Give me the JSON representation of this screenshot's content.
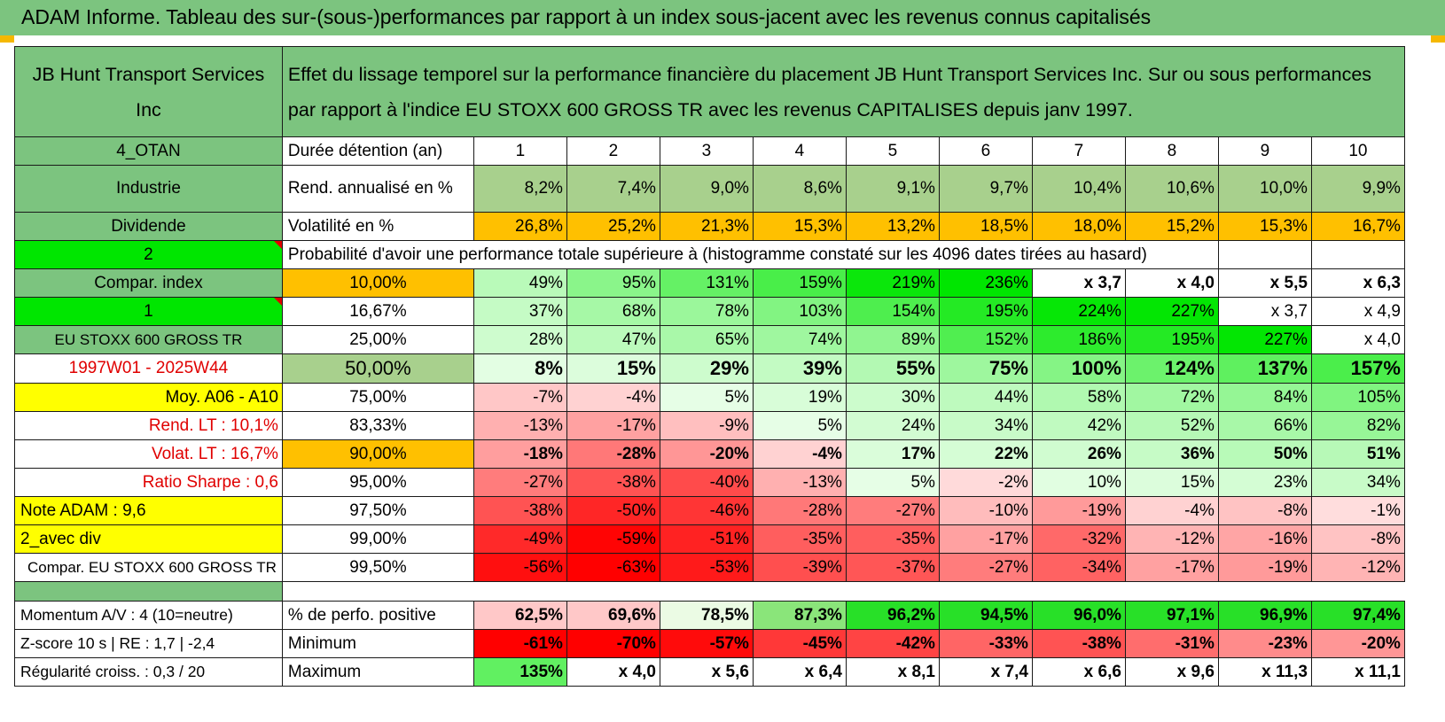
{
  "title": "ADAM Informe. Tableau des sur-(sous-)performances par rapport à un index sous-jacent avec les revenus connus capitalisés",
  "header": {
    "company": "JB Hunt Transport Services Inc",
    "description": "Effet du lissage temporel sur la performance financière du placement JB Hunt Transport Services Inc. Sur ou sous performances par rapport à l'indice EU STOXX 600 GROSS TR avec les revenus CAPITALISES depuis janv 1997."
  },
  "side": {
    "otan": "4_OTAN",
    "secteur": "Industrie",
    "dividende": "Dividende",
    "two": "2",
    "compar_index": "Compar. index",
    "one": "1",
    "index_name": "EU STOXX 600 GROSS TR",
    "period": "1997W01 - 2025W44",
    "moy": "Moy. A06 - A10",
    "rend_lt": "Rend. LT :    10,1%",
    "volat_lt": "Volat. LT :    16,7%",
    "sharpe": "Ratio Sharpe :    0,6",
    "note": "Note ADAM : 9,6",
    "avec_div": "2_avec div",
    "compar_full": "Compar. EU STOXX 600 GROSS TR"
  },
  "labels": {
    "duree": "Durée détention (an)",
    "rend": "Rend. annualisé en %",
    "vol": "Volatilité en %",
    "prob": "Probabilité d'avoir une performance totale supérieure à (histogramme constaté sur les 4096 dates tirées au hasard)"
  },
  "years": [
    "1",
    "2",
    "3",
    "4",
    "5",
    "6",
    "7",
    "8",
    "9",
    "10"
  ],
  "rend": [
    "8,2%",
    "7,4%",
    "9,0%",
    "8,6%",
    "9,1%",
    "9,7%",
    "10,4%",
    "10,6%",
    "10,0%",
    "9,9%"
  ],
  "vol": [
    "26,8%",
    "25,2%",
    "21,3%",
    "15,3%",
    "13,2%",
    "18,5%",
    "18,0%",
    "15,2%",
    "15,3%",
    "16,7%"
  ],
  "prob_rows": [
    {
      "pct": "10,00%",
      "values": [
        "49%",
        "95%",
        "131%",
        "159%",
        "219%",
        "236%",
        "x 3,7",
        "x 4,0",
        "x 5,5",
        "x 6,3"
      ]
    },
    {
      "pct": "16,67%",
      "values": [
        "37%",
        "68%",
        "78%",
        "103%",
        "154%",
        "195%",
        "224%",
        "227%",
        "x 3,7",
        "x 4,9"
      ]
    },
    {
      "pct": "25,00%",
      "values": [
        "28%",
        "47%",
        "65%",
        "74%",
        "89%",
        "152%",
        "186%",
        "195%",
        "227%",
        "x 4,0"
      ]
    },
    {
      "pct": "50,00%",
      "values": [
        "8%",
        "15%",
        "29%",
        "39%",
        "55%",
        "75%",
        "100%",
        "124%",
        "137%",
        "157%"
      ]
    },
    {
      "pct": "75,00%",
      "values": [
        "-7%",
        "-4%",
        "5%",
        "19%",
        "30%",
        "44%",
        "58%",
        "72%",
        "84%",
        "105%"
      ]
    },
    {
      "pct": "83,33%",
      "values": [
        "-13%",
        "-17%",
        "-9%",
        "5%",
        "24%",
        "34%",
        "42%",
        "52%",
        "66%",
        "82%"
      ]
    },
    {
      "pct": "90,00%",
      "values": [
        "-18%",
        "-28%",
        "-20%",
        "-4%",
        "17%",
        "22%",
        "26%",
        "36%",
        "50%",
        "51%"
      ]
    },
    {
      "pct": "95,00%",
      "values": [
        "-27%",
        "-38%",
        "-40%",
        "-13%",
        "5%",
        "-2%",
        "10%",
        "15%",
        "23%",
        "34%"
      ]
    },
    {
      "pct": "97,50%",
      "values": [
        "-38%",
        "-50%",
        "-46%",
        "-28%",
        "-27%",
        "-10%",
        "-19%",
        "-4%",
        "-8%",
        "-1%"
      ]
    },
    {
      "pct": "99,00%",
      "values": [
        "-49%",
        "-59%",
        "-51%",
        "-35%",
        "-35%",
        "-17%",
        "-32%",
        "-12%",
        "-16%",
        "-8%"
      ]
    },
    {
      "pct": "99,50%",
      "values": [
        "-56%",
        "-63%",
        "-53%",
        "-39%",
        "-37%",
        "-27%",
        "-34%",
        "-17%",
        "-19%",
        "-12%"
      ]
    }
  ],
  "bottom": {
    "momentum": "Momentum A/V : 4 (10=neutre)",
    "zscore": "Z-score 10 s | RE : 1,7 | -2,4",
    "regularite": "Régularité croiss. : 0,3 / 20",
    "pos_label": "% de perfo. positive",
    "min_label": "Minimum",
    "max_label": "Maximum",
    "pos": [
      "62,5%",
      "69,6%",
      "78,5%",
      "87,3%",
      "96,2%",
      "94,5%",
      "96,0%",
      "97,1%",
      "96,9%",
      "97,4%"
    ],
    "min": [
      "-61%",
      "-70%",
      "-57%",
      "-45%",
      "-42%",
      "-33%",
      "-38%",
      "-31%",
      "-23%",
      "-20%"
    ],
    "max": [
      "135%",
      "x 4,0",
      "x 5,6",
      "x 6,4",
      "x 8,1",
      "x 7,4",
      "x 6,6",
      "x 9,6",
      "x 11,3",
      "x 11,1"
    ]
  },
  "colors": {
    "header_green": "#7cc47f",
    "light_green": "#a8d08d",
    "bright_green": "#00e600",
    "yellow": "#ffff00",
    "orange": "#ffc000",
    "red_text": "#e00000"
  }
}
